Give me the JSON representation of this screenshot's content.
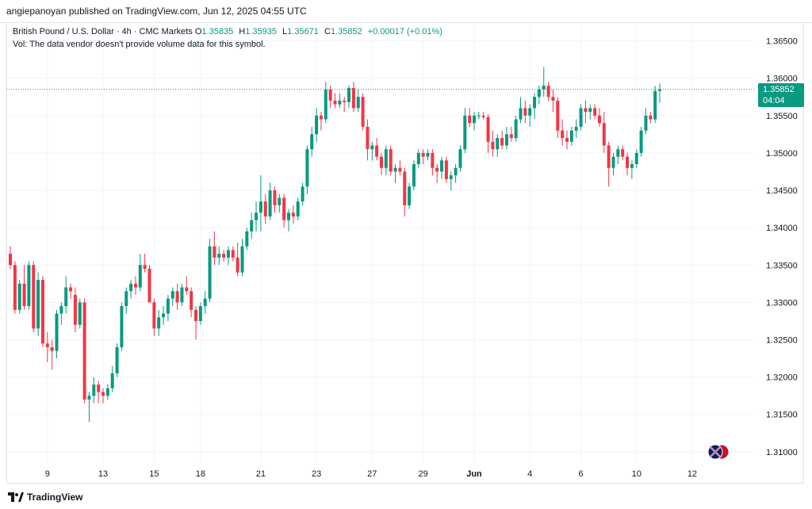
{
  "header": {
    "publish_text": "angiepanoyan published on TradingView.com, Jun 12, 2025 04:55 UTC"
  },
  "legend": {
    "symbol": "British Pound / U.S. Dollar · 4h · CMC Markets",
    "open_label": "O",
    "open": "1.35835",
    "high_label": "H",
    "high": "1.35935",
    "low_label": "L",
    "low": "1.35671",
    "close_label": "C",
    "close": "1.35852",
    "change": "+0.00017 (+0.01%)",
    "vol_note": "Vol: The data vendor doesn't provide volume data for this symbol."
  },
  "last_price": {
    "value": "1.35852",
    "countdown": "04:04"
  },
  "footer": {
    "brand": "TradingView"
  },
  "colors": {
    "up": "#089981",
    "down": "#f23645",
    "grid": "#f0f3fa",
    "text": "#131722"
  },
  "chart_data": {
    "type": "candlestick",
    "title": "British Pound / U.S. Dollar · 4h · CMC Markets",
    "ylim": [
      1.3085,
      1.3675
    ],
    "y_ticks": [
      "1.36500",
      "1.36000",
      "1.35500",
      "1.35000",
      "1.34500",
      "1.34000",
      "1.33500",
      "1.33000",
      "1.32500",
      "1.32000",
      "1.31500",
      "1.31000"
    ],
    "x_ticks": [
      {
        "label": "9",
        "index": 8
      },
      {
        "label": "13",
        "index": 20
      },
      {
        "label": "15",
        "index": 31
      },
      {
        "label": "18",
        "index": 41
      },
      {
        "label": "21",
        "index": 54
      },
      {
        "label": "23",
        "index": 66
      },
      {
        "label": "27",
        "index": 78
      },
      {
        "label": "29",
        "index": 89
      },
      {
        "label": "Jun",
        "index": 100
      },
      {
        "label": "4",
        "index": 112
      },
      {
        "label": "6",
        "index": 123
      },
      {
        "label": "10",
        "index": 135
      },
      {
        "label": "12",
        "index": 147
      }
    ],
    "last_close": 1.35852,
    "ohlc": [
      [
        1.3365,
        1.3375,
        1.3345,
        1.335
      ],
      [
        1.335,
        1.3355,
        1.3285,
        1.329
      ],
      [
        1.329,
        1.333,
        1.3285,
        1.3325
      ],
      [
        1.3325,
        1.335,
        1.329,
        1.3295
      ],
      [
        1.3295,
        1.3355,
        1.329,
        1.335
      ],
      [
        1.335,
        1.3355,
        1.326,
        1.3265
      ],
      [
        1.3265,
        1.334,
        1.3255,
        1.333
      ],
      [
        1.333,
        1.3335,
        1.324,
        1.3245
      ],
      [
        1.3245,
        1.326,
        1.322,
        1.324
      ],
      [
        1.324,
        1.325,
        1.321,
        1.3235
      ],
      [
        1.3235,
        1.329,
        1.3225,
        1.3285
      ],
      [
        1.3285,
        1.33,
        1.327,
        1.3295
      ],
      [
        1.3295,
        1.3335,
        1.3285,
        1.332
      ],
      [
        1.332,
        1.3325,
        1.3305,
        1.3315
      ],
      [
        1.331,
        1.332,
        1.326,
        1.327
      ],
      [
        1.327,
        1.3305,
        1.3265,
        1.33
      ],
      [
        1.33,
        1.3305,
        1.3165,
        1.317
      ],
      [
        1.317,
        1.318,
        1.314,
        1.3175
      ],
      [
        1.3175,
        1.32,
        1.3165,
        1.319
      ],
      [
        1.319,
        1.3195,
        1.3165,
        1.318
      ],
      [
        1.318,
        1.3185,
        1.3165,
        1.3175
      ],
      [
        1.3175,
        1.319,
        1.317,
        1.3185
      ],
      [
        1.3185,
        1.3215,
        1.318,
        1.3205
      ],
      [
        1.3205,
        1.3245,
        1.32,
        1.324
      ],
      [
        1.324,
        1.33,
        1.3235,
        1.3295
      ],
      [
        1.3295,
        1.332,
        1.3285,
        1.3315
      ],
      [
        1.3315,
        1.333,
        1.3305,
        1.3325
      ],
      [
        1.3325,
        1.3335,
        1.331,
        1.332
      ],
      [
        1.332,
        1.3365,
        1.3315,
        1.335
      ],
      [
        1.335,
        1.3365,
        1.334,
        1.3345
      ],
      [
        1.3345,
        1.335,
        1.33,
        1.33
      ],
      [
        1.33,
        1.3305,
        1.3255,
        1.3265
      ],
      [
        1.3265,
        1.329,
        1.3255,
        1.328
      ],
      [
        1.328,
        1.3295,
        1.327,
        1.3285
      ],
      [
        1.3285,
        1.331,
        1.3275,
        1.3305
      ],
      [
        1.3305,
        1.332,
        1.3295,
        1.3315
      ],
      [
        1.3315,
        1.3325,
        1.329,
        1.33
      ],
      [
        1.33,
        1.3325,
        1.3295,
        1.332
      ],
      [
        1.332,
        1.3335,
        1.331,
        1.3315
      ],
      [
        1.3315,
        1.332,
        1.328,
        1.329
      ],
      [
        1.329,
        1.3295,
        1.325,
        1.3275
      ],
      [
        1.3275,
        1.33,
        1.327,
        1.3295
      ],
      [
        1.3295,
        1.3315,
        1.3285,
        1.3305
      ],
      [
        1.3305,
        1.3385,
        1.33,
        1.3375
      ],
      [
        1.3375,
        1.3395,
        1.335,
        1.336
      ],
      [
        1.336,
        1.3375,
        1.335,
        1.3365
      ],
      [
        1.3365,
        1.337,
        1.3355,
        1.336
      ],
      [
        1.336,
        1.3375,
        1.335,
        1.337
      ],
      [
        1.337,
        1.3375,
        1.3355,
        1.336
      ],
      [
        1.336,
        1.338,
        1.3335,
        1.334
      ],
      [
        1.334,
        1.3385,
        1.3335,
        1.3375
      ],
      [
        1.3375,
        1.34,
        1.337,
        1.3395
      ],
      [
        1.3395,
        1.342,
        1.3385,
        1.341
      ],
      [
        1.341,
        1.3435,
        1.3395,
        1.342
      ],
      [
        1.342,
        1.347,
        1.3395,
        1.3435
      ],
      [
        1.3435,
        1.3445,
        1.3405,
        1.3415
      ],
      [
        1.3415,
        1.346,
        1.341,
        1.345
      ],
      [
        1.345,
        1.3455,
        1.342,
        1.343
      ],
      [
        1.343,
        1.3445,
        1.342,
        1.344
      ],
      [
        1.344,
        1.3445,
        1.34,
        1.341
      ],
      [
        1.341,
        1.3425,
        1.3395,
        1.342
      ],
      [
        1.342,
        1.343,
        1.3405,
        1.3415
      ],
      [
        1.3415,
        1.344,
        1.341,
        1.3435
      ],
      [
        1.3435,
        1.346,
        1.343,
        1.3455
      ],
      [
        1.3455,
        1.351,
        1.3445,
        1.3505
      ],
      [
        1.3505,
        1.3535,
        1.3495,
        1.3525
      ],
      [
        1.3525,
        1.356,
        1.3515,
        1.355
      ],
      [
        1.355,
        1.3555,
        1.353,
        1.3545
      ],
      [
        1.3545,
        1.3595,
        1.354,
        1.3585
      ],
      [
        1.3585,
        1.359,
        1.356,
        1.357
      ],
      [
        1.357,
        1.358,
        1.356,
        1.3565
      ],
      [
        1.3565,
        1.358,
        1.356,
        1.357
      ],
      [
        1.357,
        1.3575,
        1.3555,
        1.3568
      ],
      [
        1.3568,
        1.359,
        1.356,
        1.3587
      ],
      [
        1.3587,
        1.3595,
        1.3555,
        1.356
      ],
      [
        1.356,
        1.3585,
        1.3555,
        1.3575
      ],
      [
        1.3575,
        1.358,
        1.353,
        1.3535
      ],
      [
        1.3535,
        1.3545,
        1.349,
        1.3505
      ],
      [
        1.3505,
        1.3515,
        1.349,
        1.351
      ],
      [
        1.351,
        1.352,
        1.349,
        1.3495
      ],
      [
        1.3495,
        1.35,
        1.347,
        1.348
      ],
      [
        1.348,
        1.351,
        1.347,
        1.3505
      ],
      [
        1.3505,
        1.351,
        1.347,
        1.3475
      ],
      [
        1.3475,
        1.3485,
        1.346,
        1.348
      ],
      [
        1.348,
        1.349,
        1.347,
        1.3475
      ],
      [
        1.3475,
        1.348,
        1.3415,
        1.343
      ],
      [
        1.343,
        1.346,
        1.3425,
        1.3455
      ],
      [
        1.3455,
        1.349,
        1.345,
        1.3485
      ],
      [
        1.3485,
        1.3505,
        1.348,
        1.35
      ],
      [
        1.35,
        1.3505,
        1.3485,
        1.3495
      ],
      [
        1.3495,
        1.3505,
        1.349,
        1.35
      ],
      [
        1.35,
        1.3505,
        1.347,
        1.348
      ],
      [
        1.348,
        1.3485,
        1.346,
        1.3475
      ],
      [
        1.3475,
        1.3495,
        1.3465,
        1.349
      ],
      [
        1.349,
        1.3495,
        1.346,
        1.3465
      ],
      [
        1.3465,
        1.3475,
        1.345,
        1.347
      ],
      [
        1.347,
        1.3485,
        1.346,
        1.348
      ],
      [
        1.348,
        1.351,
        1.3475,
        1.3505
      ],
      [
        1.3505,
        1.356,
        1.35,
        1.355
      ],
      [
        1.355,
        1.356,
        1.3535,
        1.354
      ],
      [
        1.354,
        1.3555,
        1.353,
        1.355
      ],
      [
        1.355,
        1.3555,
        1.3545,
        1.355
      ],
      [
        1.355,
        1.3555,
        1.3545,
        1.3548
      ],
      [
        1.3548,
        1.3552,
        1.35,
        1.3515
      ],
      [
        1.3515,
        1.353,
        1.3495,
        1.3505
      ],
      [
        1.3505,
        1.3525,
        1.3495,
        1.352
      ],
      [
        1.352,
        1.353,
        1.3505,
        1.351
      ],
      [
        1.351,
        1.3535,
        1.3505,
        1.3525
      ],
      [
        1.3525,
        1.3535,
        1.3515,
        1.352
      ],
      [
        1.352,
        1.355,
        1.3515,
        1.3545
      ],
      [
        1.3545,
        1.3575,
        1.354,
        1.356
      ],
      [
        1.356,
        1.357,
        1.354,
        1.355
      ],
      [
        1.355,
        1.3565,
        1.3535,
        1.356
      ],
      [
        1.356,
        1.358,
        1.3545,
        1.3575
      ],
      [
        1.3575,
        1.359,
        1.3565,
        1.3585
      ],
      [
        1.3585,
        1.3615,
        1.3575,
        1.359
      ],
      [
        1.359,
        1.3595,
        1.357,
        1.3575
      ],
      [
        1.3575,
        1.3585,
        1.3555,
        1.357
      ],
      [
        1.357,
        1.3575,
        1.352,
        1.353
      ],
      [
        1.353,
        1.3545,
        1.351,
        1.352
      ],
      [
        1.352,
        1.353,
        1.3505,
        1.3515
      ],
      [
        1.3515,
        1.3535,
        1.351,
        1.353
      ],
      [
        1.353,
        1.3545,
        1.352,
        1.3535
      ],
      [
        1.3535,
        1.3565,
        1.353,
        1.356
      ],
      [
        1.356,
        1.357,
        1.354,
        1.3555
      ],
      [
        1.3555,
        1.3565,
        1.3545,
        1.356
      ],
      [
        1.356,
        1.3565,
        1.3545,
        1.355
      ],
      [
        1.355,
        1.356,
        1.3535,
        1.354
      ],
      [
        1.354,
        1.3555,
        1.35,
        1.351
      ],
      [
        1.351,
        1.3515,
        1.3455,
        1.348
      ],
      [
        1.348,
        1.35,
        1.347,
        1.3495
      ],
      [
        1.3495,
        1.351,
        1.3485,
        1.3505
      ],
      [
        1.3505,
        1.351,
        1.349,
        1.3495
      ],
      [
        1.3495,
        1.35,
        1.347,
        1.348
      ],
      [
        1.348,
        1.349,
        1.3465,
        1.3485
      ],
      [
        1.3485,
        1.3505,
        1.348,
        1.35
      ],
      [
        1.35,
        1.3535,
        1.3495,
        1.353
      ],
      [
        1.353,
        1.356,
        1.3525,
        1.355
      ],
      [
        1.355,
        1.3555,
        1.354,
        1.3545
      ],
      [
        1.3545,
        1.359,
        1.354,
        1.3583
      ],
      [
        1.3583,
        1.3593,
        1.3567,
        1.3585
      ]
    ]
  }
}
